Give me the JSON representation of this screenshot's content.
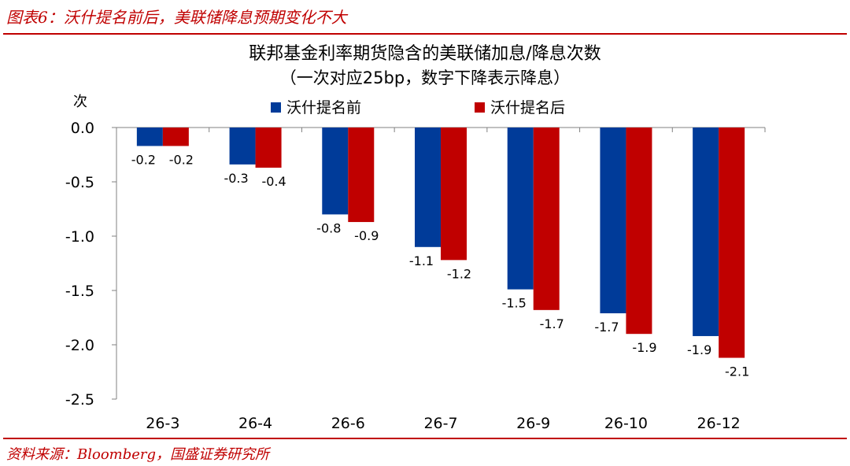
{
  "figure": {
    "caption": "图表6：沃什提名前后，美联储降息预期变化不大",
    "source": "资料来源：Bloomberg，国盛证券研究所"
  },
  "chart_data": {
    "type": "bar",
    "title": "联邦基金利率期货隐含的美联储加息/降息次数",
    "subtitle": "（一次对应25bp，数字下降表示降息）",
    "ylabel": "次",
    "xlabel": "",
    "ylim": [
      -2.5,
      0.0
    ],
    "yticks": [
      0.0,
      -0.5,
      -1.0,
      -1.5,
      -2.0,
      -2.5
    ],
    "ytick_labels": [
      "0.0",
      "-0.5",
      "-1.0",
      "-1.5",
      "-2.0",
      "-2.5"
    ],
    "categories": [
      "26-3",
      "26-4",
      "26-6",
      "26-7",
      "26-9",
      "26-10",
      "26-12"
    ],
    "legend_position": "top",
    "series": [
      {
        "name": "沃什提名前",
        "color": "#003b99",
        "values": [
          -0.17,
          -0.34,
          -0.8,
          -1.1,
          -1.49,
          -1.71,
          -1.92
        ],
        "labels": [
          "-0.2",
          "-0.3",
          "-0.8",
          "-1.1",
          "-1.5",
          "-1.7",
          "-1.9"
        ]
      },
      {
        "name": "沃什提名后",
        "color": "#c00000",
        "values": [
          -0.17,
          -0.37,
          -0.87,
          -1.22,
          -1.68,
          -1.9,
          -2.12
        ],
        "labels": [
          "-0.2",
          "-0.4",
          "-0.9",
          "-1.2",
          "-1.7",
          "-1.9",
          "-2.1"
        ]
      }
    ]
  }
}
